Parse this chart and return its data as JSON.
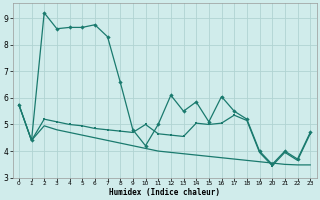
{
  "xlabel": "Humidex (Indice chaleur)",
  "background_color": "#d0eceb",
  "grid_color": "#b0d4d2",
  "line_color": "#1a7a6e",
  "xlim": [
    -0.5,
    23.5
  ],
  "ylim": [
    3.0,
    9.55
  ],
  "x_ticks": [
    0,
    1,
    2,
    3,
    4,
    5,
    6,
    7,
    8,
    9,
    10,
    11,
    12,
    13,
    14,
    15,
    16,
    17,
    18,
    19,
    20,
    21,
    22,
    23
  ],
  "y_ticks": [
    3,
    4,
    5,
    6,
    7,
    8,
    9
  ],
  "line_top_x": [
    0,
    1,
    2,
    3,
    4,
    5,
    6,
    7,
    8,
    9,
    10,
    11,
    12,
    13,
    14,
    15,
    16,
    17,
    18,
    19,
    20,
    21,
    22,
    23
  ],
  "line_top_y": [
    5.75,
    4.4,
    9.2,
    8.6,
    8.65,
    8.65,
    8.75,
    8.3,
    6.6,
    4.8,
    4.2,
    5.0,
    6.1,
    5.5,
    5.85,
    5.1,
    6.05,
    5.5,
    5.2,
    4.0,
    3.5,
    4.0,
    3.7,
    4.7
  ],
  "line_mid_x": [
    0,
    1,
    2,
    3,
    4,
    5,
    6,
    7,
    8,
    9,
    10,
    11,
    12,
    13,
    14,
    15,
    16,
    17,
    18,
    19,
    20,
    21,
    22,
    23
  ],
  "line_mid_y": [
    5.75,
    4.4,
    5.2,
    5.1,
    5.0,
    4.95,
    4.85,
    4.8,
    4.75,
    4.7,
    5.0,
    4.65,
    4.6,
    4.55,
    5.05,
    5.0,
    5.05,
    5.35,
    5.15,
    3.95,
    3.45,
    3.95,
    3.65,
    4.65
  ],
  "line_bot_x": [
    0,
    1,
    2,
    3,
    4,
    5,
    6,
    7,
    8,
    9,
    10,
    11,
    12,
    13,
    14,
    15,
    16,
    17,
    18,
    19,
    20,
    21,
    22,
    23
  ],
  "line_bot_y": [
    5.75,
    4.4,
    4.95,
    4.8,
    4.7,
    4.6,
    4.5,
    4.4,
    4.3,
    4.2,
    4.1,
    4.0,
    3.95,
    3.9,
    3.85,
    3.8,
    3.75,
    3.7,
    3.65,
    3.6,
    3.55,
    3.5,
    3.48,
    3.48
  ]
}
